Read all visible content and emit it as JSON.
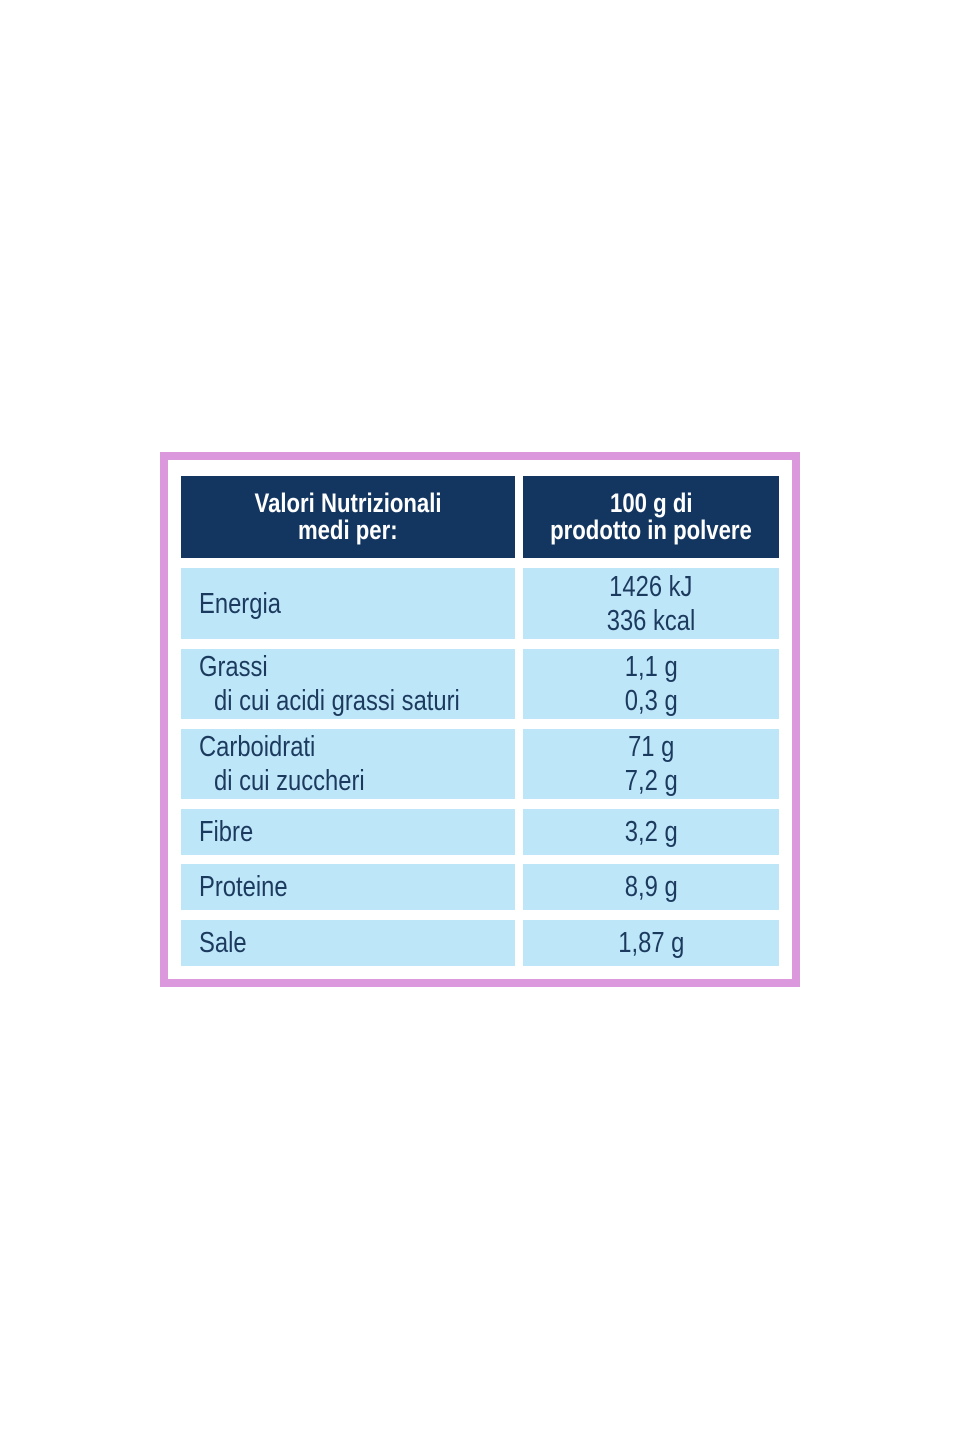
{
  "table": {
    "header": [
      [
        "Valori Nutrizionali",
        "medi per:"
      ],
      [
        "100 g di",
        "prodotto in polvere"
      ]
    ],
    "rows": [
      {
        "label": [
          "Energia"
        ],
        "values": [
          "1426 kJ",
          "336 kcal"
        ]
      },
      {
        "label": [
          "Grassi",
          "di cui acidi grassi saturi"
        ],
        "values": [
          "1,1 g",
          "0,3 g"
        ]
      },
      {
        "label": [
          "Carboidrati",
          "di cui zuccheri"
        ],
        "values": [
          "71 g",
          "7,2 g"
        ]
      },
      {
        "label": [
          "Fibre"
        ],
        "values": [
          "3,2 g"
        ]
      },
      {
        "label": [
          "Proteine"
        ],
        "values": [
          "8,9 g"
        ]
      },
      {
        "label": [
          "Sale"
        ],
        "values": [
          "1,87 g"
        ]
      }
    ]
  }
}
